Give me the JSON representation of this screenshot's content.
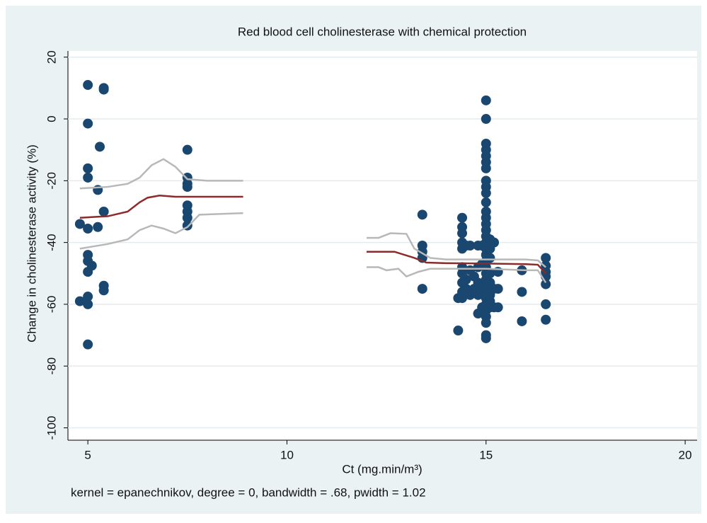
{
  "chart_data": {
    "type": "scatter",
    "title": "Red blood cell cholinesterase with chemical protection",
    "x_label": "Ct (mg.min/m³)",
    "y_label": "Change in cholinesterase activity (%)",
    "note": "kernel = epanechnikov, degree = 0, bandwidth = .68, pwidth = 1.02",
    "xlim": [
      4.5,
      20.3
    ],
    "xticks": [
      5,
      10,
      15,
      20
    ],
    "ylim": [
      -104,
      22
    ],
    "yticks": [
      20,
      0,
      -20,
      -40,
      -60,
      -80,
      -100
    ],
    "grid": true,
    "series": [
      {
        "type": "line",
        "color": "#b8b8b8",
        "x": [
          4.8,
          5.5,
          6,
          6.3,
          6.6,
          6.9,
          7.2,
          7.5,
          8,
          8.9,
          null,
          12,
          12.3,
          12.6,
          13,
          13.2,
          13.6,
          14,
          16,
          16.3,
          16.5
        ],
        "values": [
          -22.5,
          -22,
          -21,
          -19,
          -15,
          -13,
          -15.5,
          -19.5,
          -20,
          -20,
          null,
          -38.5,
          -38.5,
          -37,
          -37.2,
          -42,
          -45,
          -45.5,
          -45.5,
          -45.8,
          -48
        ]
      },
      {
        "type": "line",
        "color": "#b8b8b8",
        "x": [
          4.8,
          5.5,
          6,
          6.3,
          6.6,
          6.9,
          7.2,
          7.5,
          7.8,
          8.9,
          null,
          12,
          12.3,
          12.5,
          12.8,
          13,
          13.3,
          13.6,
          14,
          15,
          16,
          16.3,
          16.5
        ],
        "values": [
          -42,
          -40.5,
          -39,
          -36,
          -34.5,
          -35.5,
          -37,
          -35,
          -31,
          -30.5,
          null,
          -48,
          -48,
          -49,
          -48.5,
          -51,
          -49.5,
          -48.5,
          -48.5,
          -48.5,
          -49,
          -49,
          -53
        ]
      },
      {
        "type": "line",
        "color": "#8b2b2b",
        "x": [
          4.8,
          5.5,
          6,
          6.3,
          6.5,
          6.8,
          7.2,
          8.9,
          null,
          12,
          12.7,
          13.2,
          13.5,
          14,
          15,
          16,
          16.3,
          16.5
        ],
        "values": [
          -32,
          -31.5,
          -30,
          -27,
          -25.5,
          -24.8,
          -25.2,
          -25.2,
          null,
          -43,
          -43,
          -45,
          -46.5,
          -46.7,
          -46.8,
          -47,
          -47.2,
          -50
        ]
      },
      {
        "type": "scatter",
        "color": "#1a476f",
        "x": [
          5,
          5,
          5,
          5,
          5,
          5,
          5,
          5,
          5,
          5,
          5,
          4.8,
          4.8,
          5.1,
          5.25,
          5.25,
          5.3,
          5.4,
          5.4,
          5.4,
          5.4,
          5.4,
          7.5,
          7.5,
          7.5,
          7.5,
          7.5,
          7.5,
          7.5,
          7.5,
          13.4,
          13.4,
          13.4,
          13.4,
          13.4,
          14.3,
          14.3,
          14.4,
          14.4,
          14.4,
          14.4,
          14.4,
          14.4,
          14.4,
          14.4,
          14.4,
          14.4,
          14.5,
          14.5,
          14.5,
          14.6,
          14.6,
          14.6,
          14.7,
          14.7,
          14.8,
          14.8,
          14.8,
          14.8,
          14.8,
          14.9,
          14.9,
          14.9,
          14.9,
          15,
          15,
          15,
          15,
          15,
          15,
          15,
          15,
          15,
          15,
          15,
          15,
          15,
          15,
          15,
          15,
          15,
          15,
          15,
          15,
          15,
          15,
          15,
          15,
          15,
          15,
          15,
          15,
          15,
          15,
          15,
          15,
          15.1,
          15.1,
          15.1,
          15.1,
          15.1,
          15.1,
          15.1,
          15.1,
          15.2,
          15.2,
          15.2,
          15.3,
          15.3,
          15.3,
          15.9,
          15.9,
          15.9,
          16.5,
          16.5,
          16.5,
          16.5,
          16.5,
          16.5,
          16.5
        ],
        "values": [
          11,
          -1.5,
          -16,
          -19,
          -35.5,
          -44,
          -46,
          -49.5,
          -57.5,
          -60,
          -73,
          -34,
          -59,
          -47.5,
          -23,
          -35,
          -9,
          10,
          9.5,
          -30,
          -54,
          -55.5,
          -10,
          -19,
          -21,
          -22,
          -28,
          -30,
          -32,
          -34.5,
          -31,
          -41,
          -43,
          -45,
          -55,
          -58,
          -68.5,
          -32,
          -35,
          -37,
          -40,
          -42,
          -48,
          -50,
          -53,
          -56,
          -58,
          -41,
          -52,
          -55,
          -49,
          -57,
          -41,
          -51,
          -55,
          -41,
          -48,
          -53,
          -57,
          -63,
          -41,
          -47,
          -55,
          -61,
          6,
          0,
          -8,
          -10,
          -12,
          -14,
          -16,
          -20,
          -22,
          -24,
          -27,
          -30,
          -32,
          -34,
          -36,
          -38,
          -40,
          -42,
          -44,
          -46,
          -48,
          -50,
          -52,
          -54,
          -56,
          -58,
          -60,
          -62,
          -64,
          -66,
          -70,
          -71,
          -39,
          -42,
          -45,
          -50,
          -53,
          -57,
          -59,
          -61,
          -40,
          -55,
          -61,
          -49.5,
          -55,
          -61,
          -49,
          -56,
          -65.5,
          -45,
          -47.5,
          -49.5,
          -51,
          -53.5,
          -60,
          -65
        ]
      }
    ]
  }
}
